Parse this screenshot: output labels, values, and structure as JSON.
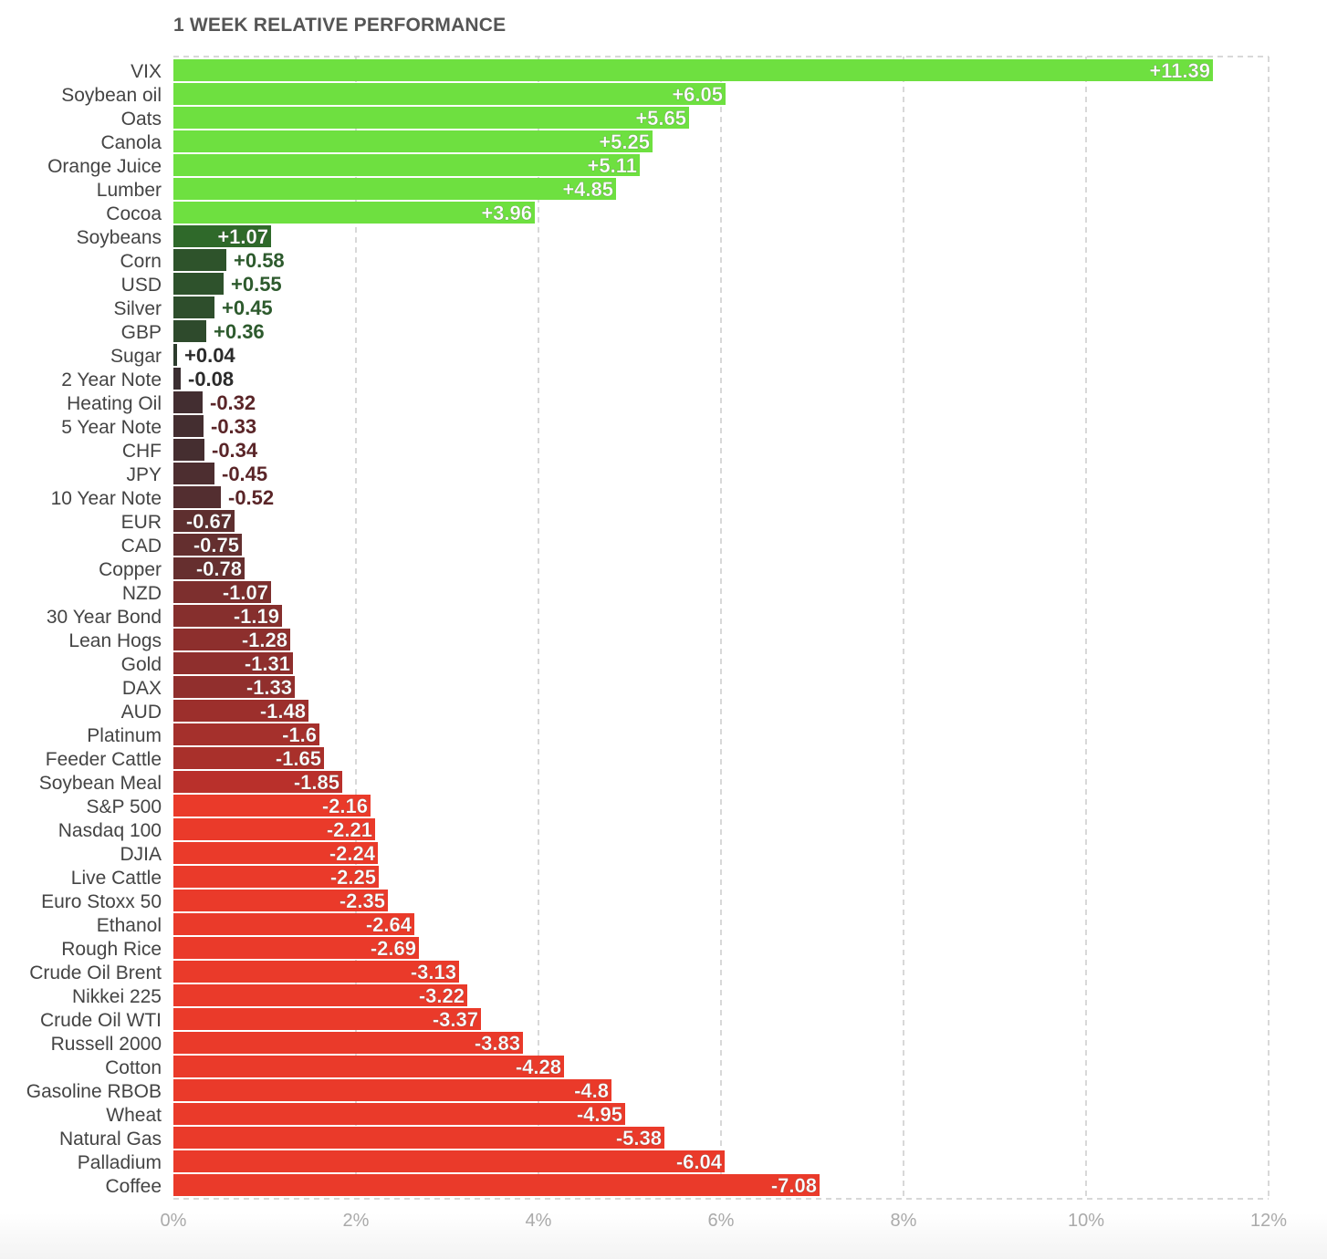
{
  "chart_data": {
    "type": "bar",
    "orientation": "horizontal",
    "title": "1 WEEK RELATIVE PERFORMANCE",
    "xlabel": "",
    "ylabel": "",
    "xlim": [
      0,
      12
    ],
    "x_ticks": [
      "0%",
      "2%",
      "4%",
      "6%",
      "8%",
      "10%",
      "12%"
    ],
    "x_tick_values": [
      0,
      2,
      4,
      6,
      8,
      10,
      12
    ],
    "grid": true,
    "legend": "none",
    "categories": [
      "VIX",
      "Soybean oil",
      "Oats",
      "Canola",
      "Orange Juice",
      "Lumber",
      "Cocoa",
      "Soybeans",
      "Corn",
      "USD",
      "Silver",
      "GBP",
      "Sugar",
      "2 Year Note",
      "Heating Oil",
      "5 Year Note",
      "CHF",
      "JPY",
      "10 Year Note",
      "EUR",
      "CAD",
      "Copper",
      "NZD",
      "30 Year Bond",
      "Lean Hogs",
      "Gold",
      "DAX",
      "AUD",
      "Platinum",
      "Feeder Cattle",
      "Soybean Meal",
      "S&P 500",
      "Nasdaq 100",
      "DJIA",
      "Live Cattle",
      "Euro Stoxx 50",
      "Ethanol",
      "Rough Rice",
      "Crude Oil Brent",
      "Nikkei 225",
      "Crude Oil WTI",
      "Russell 2000",
      "Cotton",
      "Gasoline RBOB",
      "Wheat",
      "Natural Gas",
      "Palladium",
      "Coffee"
    ],
    "values": [
      11.39,
      6.05,
      5.65,
      5.25,
      5.11,
      4.85,
      3.96,
      1.07,
      0.58,
      0.55,
      0.45,
      0.36,
      0.04,
      -0.08,
      -0.32,
      -0.33,
      -0.34,
      -0.45,
      -0.52,
      -0.67,
      -0.75,
      -0.78,
      -1.07,
      -1.19,
      -1.28,
      -1.31,
      -1.33,
      -1.48,
      -1.6,
      -1.65,
      -1.85,
      -2.16,
      -2.21,
      -2.24,
      -2.25,
      -2.35,
      -2.64,
      -2.69,
      -3.13,
      -3.22,
      -3.37,
      -3.83,
      -4.28,
      -4.8,
      -4.95,
      -5.38,
      -6.04,
      -7.08
    ],
    "value_labels": [
      "+11.39",
      "+6.05",
      "+5.65",
      "+5.25",
      "+5.11",
      "+4.85",
      "+3.96",
      "+1.07",
      "+0.58",
      "+0.55",
      "+0.45",
      "+0.36",
      "+0.04",
      "-0.08",
      "-0.32",
      "-0.33",
      "-0.34",
      "-0.45",
      "-0.52",
      "-0.67",
      "-0.75",
      "-0.78",
      "-1.07",
      "-1.19",
      "-1.28",
      "-1.31",
      "-1.33",
      "-1.48",
      "-1.6",
      "-1.65",
      "-1.85",
      "-2.16",
      "-2.21",
      "-2.24",
      "-2.25",
      "-2.35",
      "-2.64",
      "-2.69",
      "-3.13",
      "-3.22",
      "-3.37",
      "-3.83",
      "-4.28",
      "-4.8",
      "-4.95",
      "-5.38",
      "-6.04",
      "-7.08"
    ],
    "bar_length": "absolute value",
    "colors": {
      "strong_positive": "#6ee040",
      "weak_positive_light": "#2f6a2a",
      "weak_positive_dark": "#2d3a2d",
      "neutral_dark": "#3a2e31",
      "weak_negative": "#6b2427",
      "strong_negative": "#ea3a2a",
      "label_on_bar": "#ffffff",
      "label_positive_outside": "#2d5a2d",
      "label_neutral_outside": "#2b2b2b",
      "label_negative_outside": "#5a2528",
      "grid": "#cccccc",
      "axis_text": "#aaaaaa",
      "category_text": "#444444"
    }
  }
}
